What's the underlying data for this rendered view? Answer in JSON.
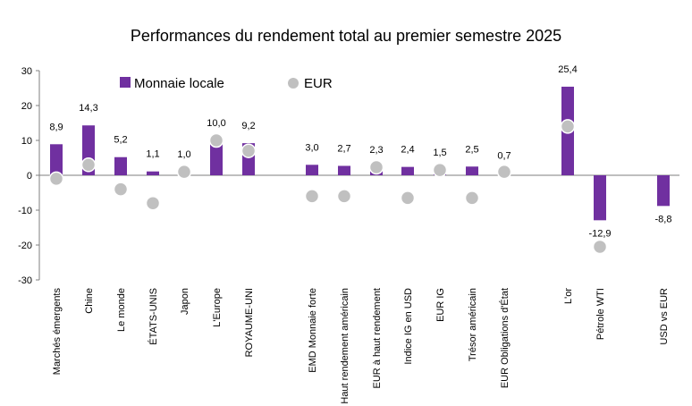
{
  "chart_data": {
    "type": "bar",
    "title": "Performances du rendement total au premier semestre 2025",
    "ylim": [
      -30,
      30
    ],
    "yticks": [
      30,
      20,
      10,
      0,
      -10,
      -20,
      -30
    ],
    "grid": false,
    "legend_position": "top-left",
    "categories": [
      "Marchés émergents",
      "Chine",
      "Le monde",
      "ÉTATS-UNIS",
      "Japon",
      "L'Europe",
      "ROYAUME-UNI",
      "EMD Monnaie forte",
      "Haut rendement américain",
      "EUR à haut rendement",
      "Indice IG en USD",
      "EUR IG",
      "Trésor américain",
      "EUR Obligations d'État",
      "L'or",
      "Pétrole WTI",
      "USD vs EUR"
    ],
    "series": [
      {
        "name": "Monnaie locale",
        "color": "#7030a0",
        "values": [
          8.9,
          14.3,
          5.2,
          1.1,
          1.0,
          10.0,
          9.2,
          3.0,
          2.7,
          2.3,
          2.4,
          1.5,
          2.5,
          0.7,
          25.4,
          -12.9,
          -8.8
        ],
        "labels": [
          "8,9",
          "14,3",
          "5,2",
          "1,1",
          "1,0",
          "10,0",
          "9,2",
          "3,0",
          "2,7",
          "2,3",
          "2,4",
          "1,5",
          "2,5",
          "0,7",
          "25,4",
          "-12,9",
          "-8,8"
        ]
      },
      {
        "name": "EUR",
        "color": "#c0c0c0",
        "values": [
          -1.0,
          3.0,
          -4.0,
          -8.0,
          1.0,
          10.0,
          7.0,
          -6.0,
          -6.0,
          2.3,
          -6.5,
          1.5,
          -6.5,
          1.0,
          14.0,
          -20.5,
          null
        ]
      }
    ]
  }
}
